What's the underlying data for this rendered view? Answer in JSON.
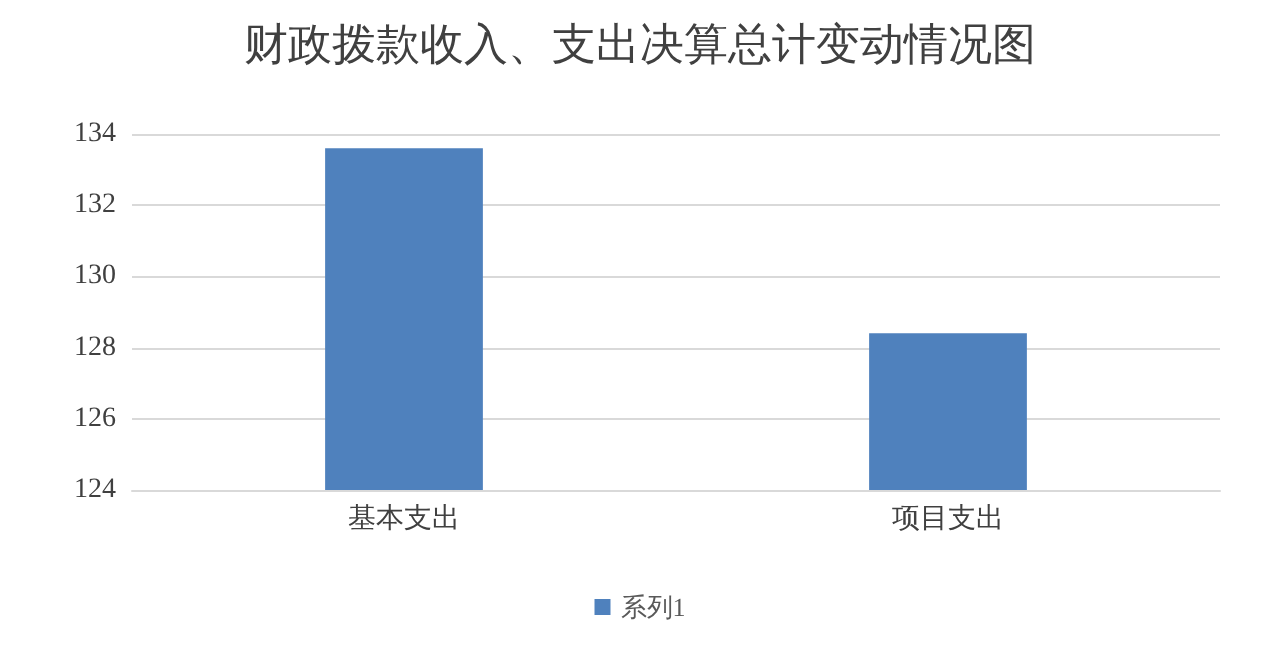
{
  "chart_data": {
    "type": "bar",
    "title": "财政拨款收入、支出决算总计变动情况图",
    "categories": [
      "基本支出",
      "项目支出"
    ],
    "series": [
      {
        "name": "系列1",
        "color": "#4f81bd",
        "values": [
          133.6,
          128.4
        ]
      }
    ],
    "ylim": [
      124,
      134
    ],
    "yticks": [
      124,
      126,
      128,
      130,
      132,
      134
    ],
    "grid": "y",
    "legend": "bottom"
  }
}
